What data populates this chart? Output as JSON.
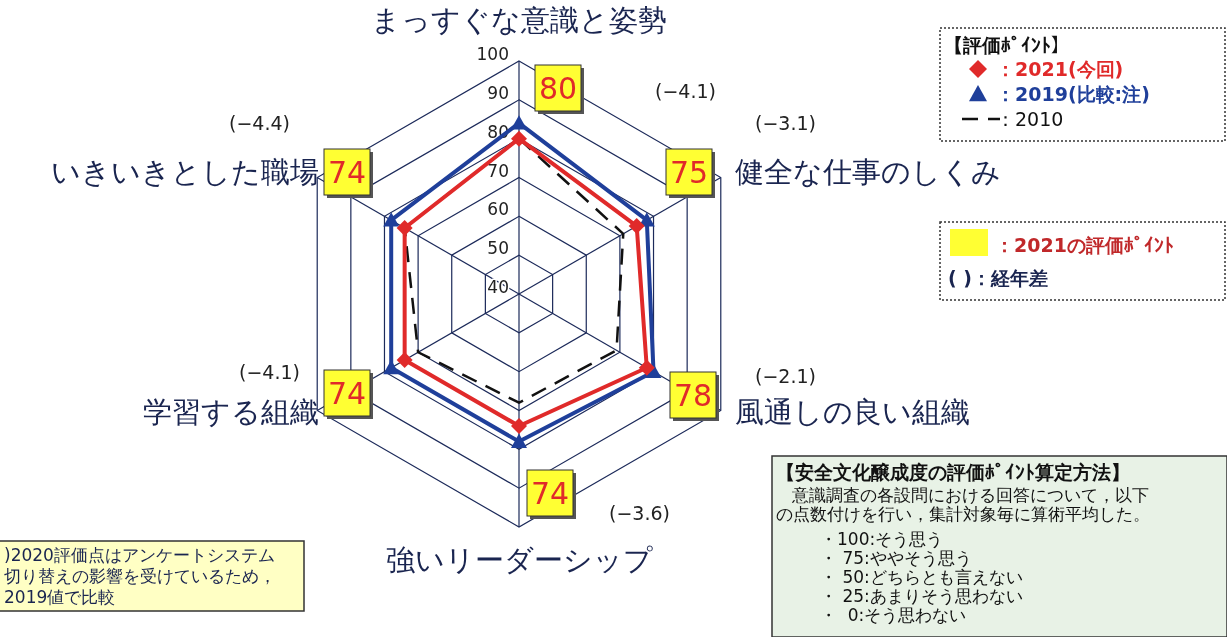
{
  "chart_data": {
    "type": "radar",
    "categories": [
      "まっすぐな意識と姿勢",
      "健全な仕事のしくみ",
      "風通しの良い組織",
      "強いリーダーシップ",
      "学習する組織",
      "いきいきとした職場"
    ],
    "ylim": [
      40,
      100
    ],
    "yticks": [
      40,
      50,
      60,
      70,
      80,
      90,
      100
    ],
    "grid": true,
    "legend": "top right",
    "legend_title": "【評価ﾎﾟｲﾝﾄ】",
    "series": [
      {
        "name": "：2021(今回)",
        "color": "#e02a2a",
        "marker": "diamond",
        "line_style": "solid",
        "values": [
          80,
          75,
          78,
          74,
          74,
          74
        ],
        "value_labels": [
          "80",
          "75",
          "78",
          "74",
          "74",
          "74"
        ]
      },
      {
        "name": "：2019(比較:注)",
        "color": "#1f3f9a",
        "marker": "triangle",
        "line_style": "solid",
        "values": [
          84,
          78,
          80,
          78,
          78,
          78
        ]
      },
      {
        "name": "：2010",
        "color": "#111111",
        "marker": "none",
        "line_style": "dashed",
        "values": [
          80,
          71,
          69,
          68,
          70,
          74
        ]
      }
    ],
    "annotations": [
      "(−4.1)",
      "(−3.1)",
      "(−2.1)",
      "(−3.6)",
      "(−4.1)",
      "(−4.4)",
      "：2021の評価ﾎﾟｲﾝﾄ",
      "( )：経年差",
      ")2020評価点はアンケートシステム切り替えの影響を受けているため，2019値で比較",
      "【安全文化醸成度の評価ﾎﾟｲﾝﾄ算定方法】",
      "意識調査の各設問における回答について，以下の点数付けを行い，集計対象毎に算術平均した。",
      "・100:そう思う",
      "・ 75:ややそう思う",
      "・ 50:どちらとも言えない",
      "・ 25:あまりそう思わない",
      "・  0:そう思わない"
    ]
  }
}
